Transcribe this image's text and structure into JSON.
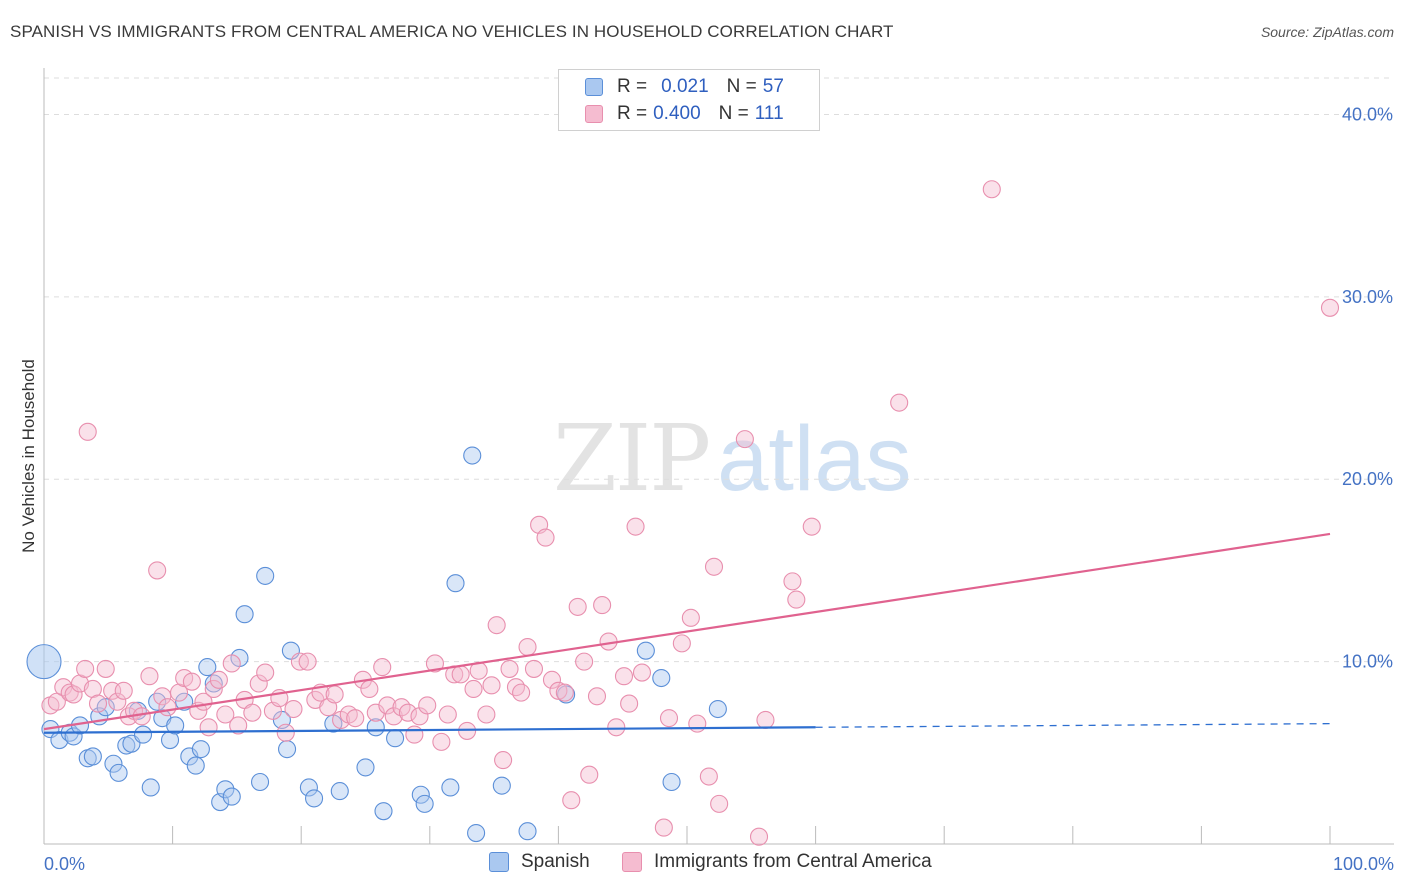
{
  "title": "SPANISH VS IMMIGRANTS FROM CENTRAL AMERICA NO VEHICLES IN HOUSEHOLD CORRELATION CHART",
  "source": "Source: ZipAtlas.com",
  "watermark": {
    "zip": "ZIP",
    "atlas": "atlas"
  },
  "legend_top": {
    "rows": [
      {
        "r_label": "R =",
        "r_value": "0.021",
        "n_label": "N =",
        "n_value": "57",
        "color": "#aac8f0"
      },
      {
        "r_label": "R =",
        "r_value": "0.400",
        "n_label": "N =",
        "n_value": "111",
        "color": "#f5bcd0"
      }
    ]
  },
  "legend_bottom": [
    {
      "label": "Spanish",
      "color": "#aac8f0"
    },
    {
      "label": "Immigrants from Central America",
      "color": "#f5bcd0"
    }
  ],
  "chart_data": {
    "type": "scatter",
    "xlabel": "",
    "ylabel": "No Vehicles in Household",
    "xlim": [
      0,
      100
    ],
    "ylim": [
      0,
      42
    ],
    "x_tick_labels": [
      "0.0%",
      "100.0%"
    ],
    "y_ticks": [
      10,
      20,
      30,
      40
    ],
    "y_tick_labels": [
      "10.0%",
      "20.0%",
      "30.0%",
      "40.0%"
    ],
    "grid": true,
    "series": [
      {
        "name": "Spanish",
        "color": "#5b8fd8",
        "fill": "#aac8f0",
        "trend": {
          "x0": 0,
          "y0": 6.1,
          "x1": 60,
          "y1": 6.4,
          "dash_x1": 100,
          "dash_y1": 6.6,
          "color": "#2e6fd0"
        },
        "points": [
          [
            0.5,
            6.3
          ],
          [
            1.2,
            5.7
          ],
          [
            2.0,
            6.1
          ],
          [
            2.3,
            5.9
          ],
          [
            2.8,
            6.5
          ],
          [
            3.4,
            4.7
          ],
          [
            3.8,
            4.8
          ],
          [
            4.3,
            7.0
          ],
          [
            4.8,
            7.5
          ],
          [
            5.4,
            4.4
          ],
          [
            5.8,
            3.9
          ],
          [
            6.4,
            5.4
          ],
          [
            6.8,
            5.5
          ],
          [
            7.3,
            7.3
          ],
          [
            7.7,
            6.0
          ],
          [
            8.3,
            3.1
          ],
          [
            8.8,
            7.8
          ],
          [
            9.2,
            6.9
          ],
          [
            9.8,
            5.7
          ],
          [
            10.2,
            6.5
          ],
          [
            10.9,
            7.8
          ],
          [
            11.3,
            4.8
          ],
          [
            11.8,
            4.3
          ],
          [
            12.2,
            5.2
          ],
          [
            12.7,
            9.7
          ],
          [
            13.2,
            8.8
          ],
          [
            13.7,
            2.3
          ],
          [
            14.1,
            3.0
          ],
          [
            14.6,
            2.6
          ],
          [
            15.2,
            10.2
          ],
          [
            15.6,
            12.6
          ],
          [
            16.8,
            3.4
          ],
          [
            17.2,
            14.7
          ],
          [
            18.5,
            6.8
          ],
          [
            18.9,
            5.2
          ],
          [
            19.2,
            10.6
          ],
          [
            20.6,
            3.1
          ],
          [
            21.0,
            2.5
          ],
          [
            22.5,
            6.6
          ],
          [
            23.0,
            2.9
          ],
          [
            25.0,
            4.2
          ],
          [
            25.8,
            6.4
          ],
          [
            26.4,
            1.8
          ],
          [
            27.3,
            5.8
          ],
          [
            29.3,
            2.7
          ],
          [
            29.6,
            2.2
          ],
          [
            31.6,
            3.1
          ],
          [
            32.0,
            14.3
          ],
          [
            33.3,
            21.3
          ],
          [
            33.6,
            0.6
          ],
          [
            35.6,
            3.2
          ],
          [
            37.6,
            0.7
          ],
          [
            40.6,
            8.2
          ],
          [
            46.8,
            10.6
          ],
          [
            48.0,
            9.1
          ],
          [
            48.8,
            3.4
          ],
          [
            52.4,
            7.4
          ]
        ],
        "big_point": [
          0.0,
          10.0
        ]
      },
      {
        "name": "Immigrants from Central America",
        "color": "#e88fae",
        "fill": "#f5bcd0",
        "trend": {
          "x0": 0,
          "y0": 6.3,
          "x1": 100,
          "y1": 17.0,
          "color": "#e0628f"
        },
        "points": [
          [
            0.5,
            7.6
          ],
          [
            1.0,
            7.8
          ],
          [
            1.5,
            8.6
          ],
          [
            2.0,
            8.3
          ],
          [
            2.3,
            8.2
          ],
          [
            2.8,
            8.8
          ],
          [
            3.2,
            9.6
          ],
          [
            3.4,
            22.6
          ],
          [
            3.8,
            8.5
          ],
          [
            4.2,
            7.7
          ],
          [
            4.8,
            9.6
          ],
          [
            5.3,
            8.4
          ],
          [
            5.7,
            7.8
          ],
          [
            6.2,
            8.4
          ],
          [
            6.6,
            7.0
          ],
          [
            7.0,
            7.3
          ],
          [
            7.6,
            7.0
          ],
          [
            8.2,
            9.2
          ],
          [
            8.8,
            15.0
          ],
          [
            9.2,
            8.1
          ],
          [
            9.6,
            7.5
          ],
          [
            10.5,
            8.3
          ],
          [
            10.9,
            9.1
          ],
          [
            11.5,
            8.9
          ],
          [
            12.0,
            7.3
          ],
          [
            12.4,
            7.8
          ],
          [
            12.8,
            6.4
          ],
          [
            13.2,
            8.5
          ],
          [
            13.6,
            9.0
          ],
          [
            14.1,
            7.1
          ],
          [
            14.6,
            9.9
          ],
          [
            15.1,
            6.5
          ],
          [
            15.6,
            7.9
          ],
          [
            16.2,
            7.2
          ],
          [
            16.7,
            8.8
          ],
          [
            17.2,
            9.4
          ],
          [
            17.8,
            7.3
          ],
          [
            18.3,
            8.0
          ],
          [
            18.8,
            6.1
          ],
          [
            19.4,
            7.4
          ],
          [
            19.9,
            10.0
          ],
          [
            20.5,
            10.0
          ],
          [
            21.1,
            7.9
          ],
          [
            21.5,
            8.3
          ],
          [
            22.1,
            7.5
          ],
          [
            22.6,
            8.2
          ],
          [
            23.1,
            6.8
          ],
          [
            23.7,
            7.1
          ],
          [
            24.2,
            6.9
          ],
          [
            24.8,
            9.0
          ],
          [
            25.3,
            8.5
          ],
          [
            25.8,
            7.2
          ],
          [
            26.3,
            9.7
          ],
          [
            26.7,
            7.6
          ],
          [
            27.2,
            7.0
          ],
          [
            27.8,
            7.5
          ],
          [
            28.3,
            7.2
          ],
          [
            28.8,
            6.0
          ],
          [
            29.2,
            7.0
          ],
          [
            29.8,
            7.6
          ],
          [
            30.4,
            9.9
          ],
          [
            30.9,
            5.6
          ],
          [
            31.4,
            7.1
          ],
          [
            31.9,
            9.3
          ],
          [
            32.4,
            9.3
          ],
          [
            32.9,
            6.2
          ],
          [
            33.4,
            8.5
          ],
          [
            33.8,
            9.5
          ],
          [
            34.4,
            7.1
          ],
          [
            34.8,
            8.7
          ],
          [
            35.2,
            12.0
          ],
          [
            35.7,
            4.6
          ],
          [
            36.2,
            9.6
          ],
          [
            36.7,
            8.6
          ],
          [
            37.1,
            8.3
          ],
          [
            37.6,
            10.8
          ],
          [
            38.1,
            9.6
          ],
          [
            38.5,
            17.5
          ],
          [
            39.0,
            16.8
          ],
          [
            39.5,
            9.0
          ],
          [
            40.0,
            8.4
          ],
          [
            40.5,
            8.3
          ],
          [
            41.0,
            2.4
          ],
          [
            41.5,
            13.0
          ],
          [
            42.0,
            10.0
          ],
          [
            42.4,
            3.8
          ],
          [
            43.0,
            8.1
          ],
          [
            43.4,
            13.1
          ],
          [
            43.9,
            11.1
          ],
          [
            44.5,
            6.4
          ],
          [
            45.1,
            9.2
          ],
          [
            45.5,
            7.7
          ],
          [
            46.0,
            17.4
          ],
          [
            46.5,
            9.4
          ],
          [
            48.2,
            0.9
          ],
          [
            48.6,
            6.9
          ],
          [
            49.6,
            11.0
          ],
          [
            50.3,
            12.4
          ],
          [
            50.8,
            6.6
          ],
          [
            51.7,
            3.7
          ],
          [
            52.1,
            15.2
          ],
          [
            52.5,
            2.2
          ],
          [
            54.5,
            22.2
          ],
          [
            55.6,
            0.4
          ],
          [
            56.1,
            6.8
          ],
          [
            58.2,
            14.4
          ],
          [
            58.5,
            13.4
          ],
          [
            59.7,
            17.4
          ],
          [
            66.5,
            24.2
          ],
          [
            73.7,
            35.9
          ],
          [
            100.0,
            29.4
          ]
        ]
      }
    ]
  }
}
